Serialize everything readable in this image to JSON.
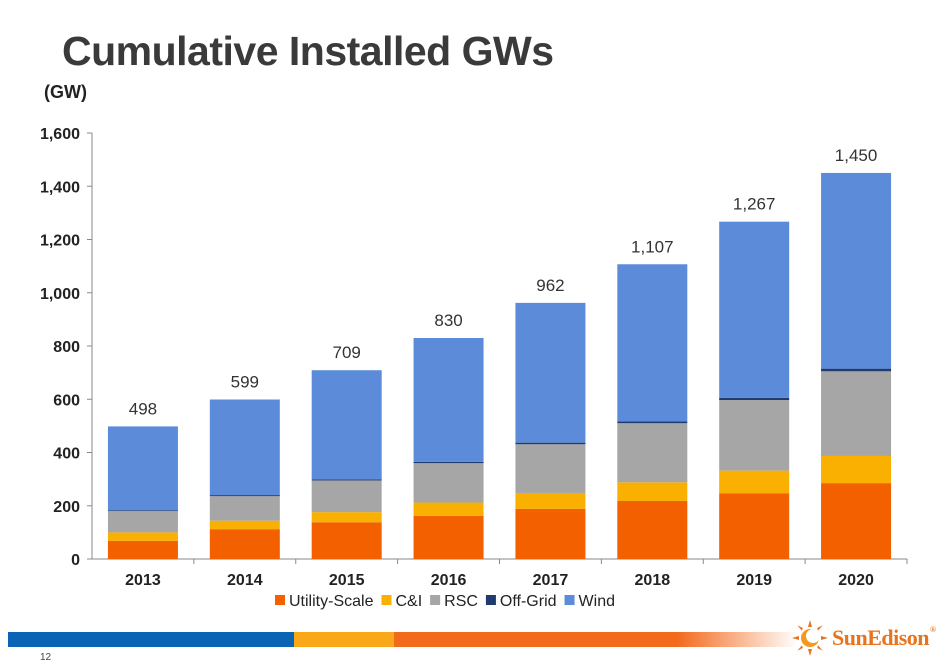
{
  "chart_data": {
    "type": "bar",
    "stacked": true,
    "title": "Cumulative Installed GWs",
    "ylabel": "(GW)",
    "xlabel": "",
    "categories": [
      "2013",
      "2014",
      "2015",
      "2016",
      "2017",
      "2018",
      "2019",
      "2020"
    ],
    "ylim": [
      0,
      1600
    ],
    "yticks": [
      0,
      200,
      400,
      600,
      800,
      1000,
      1200,
      1400,
      1600
    ],
    "ytick_labels": [
      "0",
      "200",
      "400",
      "600",
      "800",
      "1,000",
      "1,200",
      "1,400",
      "1,600"
    ],
    "grid": false,
    "legend_position": "bottom",
    "series": [
      {
        "name": "Utility-Scale",
        "color": "#f26000",
        "values": [
          68,
          112,
          138,
          162,
          188,
          218,
          247,
          285
        ]
      },
      {
        "name": "C&I",
        "color": "#f9b000",
        "values": [
          32,
          32,
          38,
          50,
          60,
          70,
          85,
          102
        ]
      },
      {
        "name": "RSC",
        "color": "#a6a6a6",
        "values": [
          80,
          92,
          119,
          148,
          183,
          222,
          265,
          318
        ]
      },
      {
        "name": "Off-Grid",
        "color": "#1f3b6f",
        "values": [
          3,
          4,
          4,
          5,
          6,
          7,
          8,
          10
        ]
      },
      {
        "name": "Wind",
        "color": "#5b8bd9",
        "values": [
          315,
          359,
          410,
          465,
          525,
          590,
          662,
          735
        ]
      }
    ],
    "totals": [
      498,
      599,
      709,
      830,
      962,
      1107,
      1267,
      1450
    ],
    "total_labels": [
      "498",
      "599",
      "709",
      "830",
      "962",
      "1,107",
      "1,267",
      "1,450"
    ]
  },
  "footer": {
    "page_number": "12",
    "logo_text": "SunEdison",
    "logo_mark": "®"
  }
}
